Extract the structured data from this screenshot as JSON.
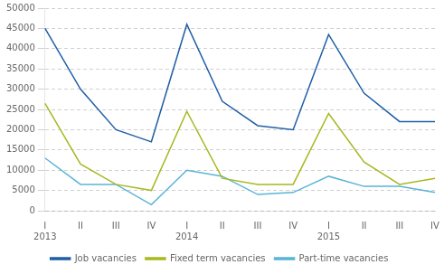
{
  "chart_data": {
    "type": "line",
    "categories": [
      "I",
      "II",
      "III",
      "IV",
      "I",
      "II",
      "III",
      "IV",
      "I",
      "II",
      "III",
      "IV"
    ],
    "annotations": [
      {
        "text": "2013",
        "x": 0
      },
      {
        "text": "2014",
        "x": 4
      },
      {
        "text": "2015",
        "x": 8
      }
    ],
    "series": [
      {
        "name": "Job vacancies",
        "color": "#1f5fa6",
        "values": [
          45000,
          30000,
          20000,
          17000,
          46000,
          27000,
          21000,
          20000,
          43500,
          29000,
          22000,
          22000
        ]
      },
      {
        "name": "Fixed term vacancies",
        "color": "#a8b820",
        "values": [
          26500,
          11500,
          6500,
          5000,
          24500,
          8000,
          6500,
          6500,
          24000,
          12000,
          6500,
          8000
        ]
      },
      {
        "name": "Part-time vacancies",
        "color": "#5ab4d6",
        "values": [
          13000,
          6500,
          6500,
          1500,
          10000,
          8500,
          4000,
          4500,
          8500,
          6000,
          6000,
          4500
        ]
      }
    ],
    "ylim": [
      0,
      50000
    ],
    "yticks": [
      0,
      5000,
      10000,
      15000,
      20000,
      25000,
      30000,
      35000,
      40000,
      45000,
      50000
    ],
    "grid": true,
    "legend": "bottom"
  }
}
